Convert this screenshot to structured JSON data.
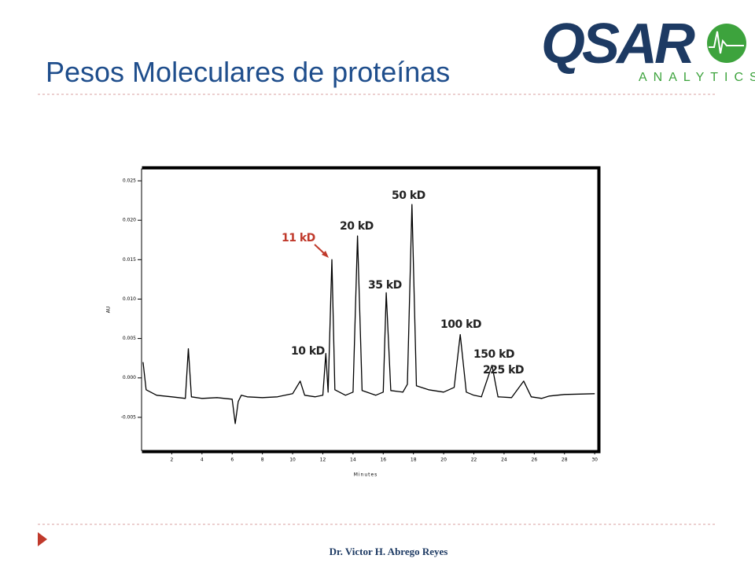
{
  "slide": {
    "title": "Pesos Moleculares de proteínas",
    "logo_main": "QSAR",
    "logo_sub": "ANALYTICS",
    "footer": "Dr. Victor H. Abrego Reyes"
  },
  "chart_data": {
    "type": "line",
    "x_label": "Minutes",
    "y_label": "AU",
    "xlim": [
      0,
      30.2
    ],
    "ylim": [
      -0.0092,
      0.0265
    ],
    "xticks": [
      2,
      4,
      6,
      8,
      10,
      12,
      14,
      16,
      18,
      20,
      22,
      24,
      26,
      28,
      30
    ],
    "yticks": [
      {
        "value": -0.005,
        "label": "-0.005"
      },
      {
        "value": 0,
        "label": "0.000"
      },
      {
        "value": 0.005,
        "label": "0.005"
      },
      {
        "value": 0.01,
        "label": "0.010"
      },
      {
        "value": 0.015,
        "label": "0.015"
      },
      {
        "value": 0.02,
        "label": "0.020"
      },
      {
        "value": 0.025,
        "label": "0.025"
      }
    ],
    "series": [
      {
        "name": "AU",
        "color": "#000000",
        "x": [
          0.1,
          0.3,
          1,
          2,
          2.9,
          3.1,
          3.3,
          4,
          5,
          6,
          6.2,
          6.4,
          6.6,
          7,
          8,
          9,
          10,
          10.5,
          10.8,
          11.5,
          12.0,
          12.2,
          12.35,
          12.6,
          12.8,
          13.5,
          14.0,
          14.3,
          14.6,
          15.5,
          16.0,
          16.2,
          16.5,
          17.3,
          17.6,
          17.9,
          18.2,
          19,
          20,
          20.7,
          21.1,
          21.5,
          22,
          22.5,
          23.2,
          23.6,
          24.5,
          25.3,
          25.8,
          26.5,
          27,
          28,
          30
        ],
        "values": [
          0.002,
          -0.0015,
          -0.0022,
          -0.0024,
          -0.0026,
          0.0037,
          -0.0024,
          -0.0026,
          -0.0025,
          -0.0027,
          -0.0058,
          -0.003,
          -0.0022,
          -0.0024,
          -0.0025,
          -0.0024,
          -0.002,
          -0.0004,
          -0.0022,
          -0.0024,
          -0.0022,
          0.0031,
          -0.0018,
          0.015,
          -0.0015,
          -0.0022,
          -0.0018,
          0.018,
          -0.0016,
          -0.0022,
          -0.0018,
          0.0108,
          -0.0016,
          -0.0018,
          -0.0008,
          0.022,
          -0.001,
          -0.0015,
          -0.0018,
          -0.0012,
          0.0055,
          -0.0018,
          -0.0022,
          -0.0024,
          0.0016,
          -0.0024,
          -0.0025,
          -0.0004,
          -0.0024,
          -0.0026,
          -0.0023,
          -0.0021,
          -0.002
        ]
      }
    ],
    "annotations": [
      "50 kD",
      "20 kD",
      "11 kD",
      "35 kD",
      "100 kD",
      "10 kD",
      "150 kD",
      "225 kD"
    ]
  }
}
